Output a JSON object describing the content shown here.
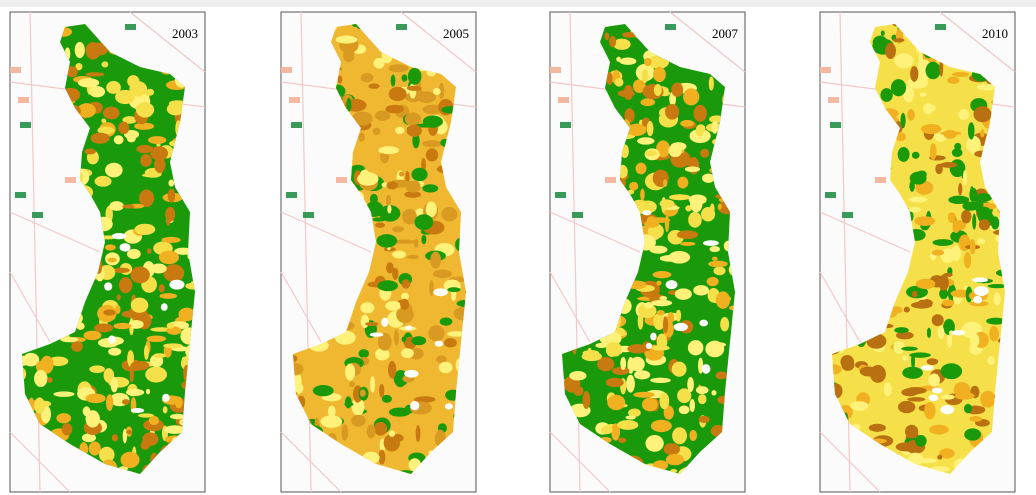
{
  "panels": [
    {
      "label": "2003"
    },
    {
      "label": "2005"
    },
    {
      "label": "2007"
    },
    {
      "label": "2010"
    }
  ]
}
